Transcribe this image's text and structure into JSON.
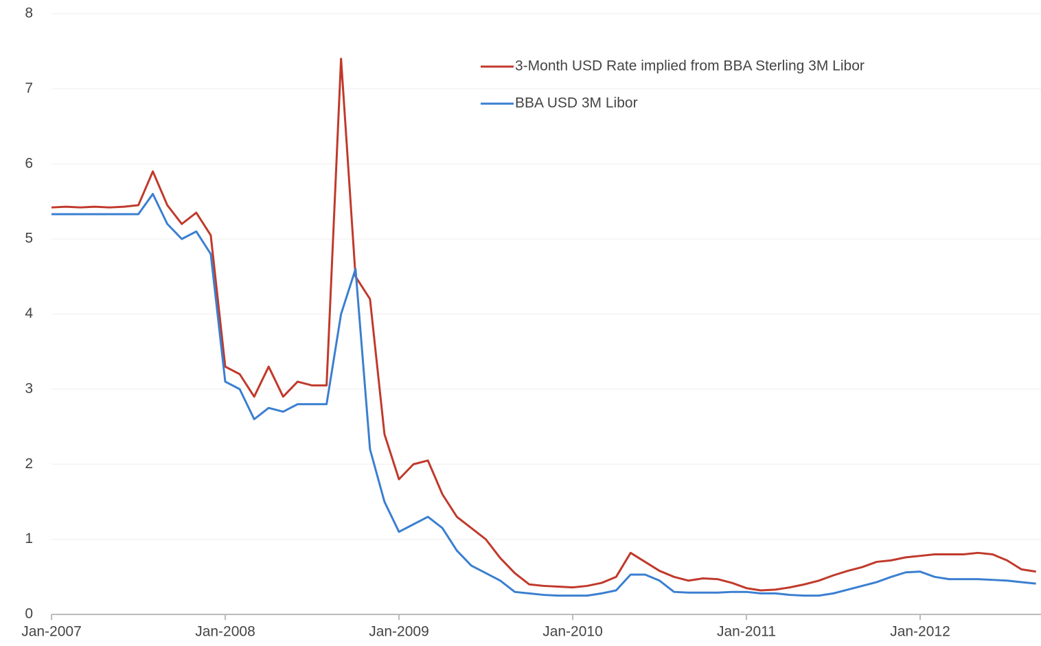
{
  "chart_data": {
    "type": "line",
    "x": [
      "2007-01",
      "2007-02",
      "2007-03",
      "2007-04",
      "2007-05",
      "2007-06",
      "2007-07",
      "2007-08",
      "2007-09",
      "2007-10",
      "2007-11",
      "2007-12",
      "2008-01",
      "2008-02",
      "2008-03",
      "2008-04",
      "2008-05",
      "2008-06",
      "2008-07",
      "2008-08",
      "2008-09",
      "2008-10",
      "2008-11",
      "2008-12",
      "2009-01",
      "2009-02",
      "2009-03",
      "2009-04",
      "2009-05",
      "2009-06",
      "2009-07",
      "2009-08",
      "2009-09",
      "2009-10",
      "2009-11",
      "2009-12",
      "2010-01",
      "2010-02",
      "2010-03",
      "2010-04",
      "2010-05",
      "2010-06",
      "2010-07",
      "2010-08",
      "2010-09",
      "2010-10",
      "2010-11",
      "2010-12",
      "2011-01",
      "2011-02",
      "2011-03",
      "2011-04",
      "2011-05",
      "2011-06",
      "2011-07",
      "2011-08",
      "2011-09",
      "2011-10",
      "2011-11",
      "2011-12",
      "2012-01",
      "2012-02",
      "2012-03",
      "2012-04",
      "2012-05",
      "2012-06",
      "2012-07",
      "2012-08",
      "2012-09"
    ],
    "series": [
      {
        "name": "3-Month USD Rate implied from BBA Sterling 3M Libor",
        "color": "#c0392b",
        "values": [
          5.42,
          5.43,
          5.42,
          5.43,
          5.42,
          5.43,
          5.45,
          5.9,
          5.45,
          5.2,
          5.35,
          5.05,
          3.3,
          3.2,
          2.9,
          3.3,
          2.9,
          3.1,
          3.05,
          3.05,
          7.4,
          4.5,
          4.2,
          2.4,
          1.8,
          2.0,
          2.05,
          1.6,
          1.3,
          1.15,
          1.0,
          0.75,
          0.55,
          0.4,
          0.38,
          0.37,
          0.36,
          0.38,
          0.42,
          0.5,
          0.82,
          0.7,
          0.58,
          0.5,
          0.45,
          0.48,
          0.47,
          0.42,
          0.35,
          0.32,
          0.33,
          0.36,
          0.4,
          0.45,
          0.52,
          0.58,
          0.63,
          0.7,
          0.72,
          0.76,
          0.78,
          0.8,
          0.8,
          0.8,
          0.82,
          0.8,
          0.72,
          0.6,
          0.57
        ]
      },
      {
        "name": "BBA USD 3M Libor",
        "color": "#3a7fd0",
        "values": [
          5.33,
          5.33,
          5.33,
          5.33,
          5.33,
          5.33,
          5.33,
          5.6,
          5.2,
          5.0,
          5.1,
          4.8,
          3.1,
          3.0,
          2.6,
          2.75,
          2.7,
          2.8,
          2.8,
          2.8,
          4.0,
          4.6,
          2.2,
          1.5,
          1.1,
          1.2,
          1.3,
          1.15,
          0.85,
          0.65,
          0.55,
          0.45,
          0.3,
          0.28,
          0.26,
          0.25,
          0.25,
          0.25,
          0.28,
          0.32,
          0.53,
          0.53,
          0.45,
          0.3,
          0.29,
          0.29,
          0.29,
          0.3,
          0.3,
          0.28,
          0.28,
          0.26,
          0.25,
          0.25,
          0.28,
          0.33,
          0.38,
          0.43,
          0.5,
          0.56,
          0.57,
          0.5,
          0.47,
          0.47,
          0.47,
          0.46,
          0.45,
          0.43,
          0.41
        ]
      }
    ],
    "xticks": [
      {
        "value": "2007-01",
        "label": "Jan-2007"
      },
      {
        "value": "2008-01",
        "label": "Jan-2008"
      },
      {
        "value": "2009-01",
        "label": "Jan-2009"
      },
      {
        "value": "2010-01",
        "label": "Jan-2010"
      },
      {
        "value": "2011-01",
        "label": "Jan-2011"
      },
      {
        "value": "2012-01",
        "label": "Jan-2012"
      }
    ],
    "ylim": [
      0,
      8
    ],
    "yticks": [
      0,
      1,
      2,
      3,
      4,
      5,
      6,
      7,
      8
    ],
    "grid": true
  }
}
